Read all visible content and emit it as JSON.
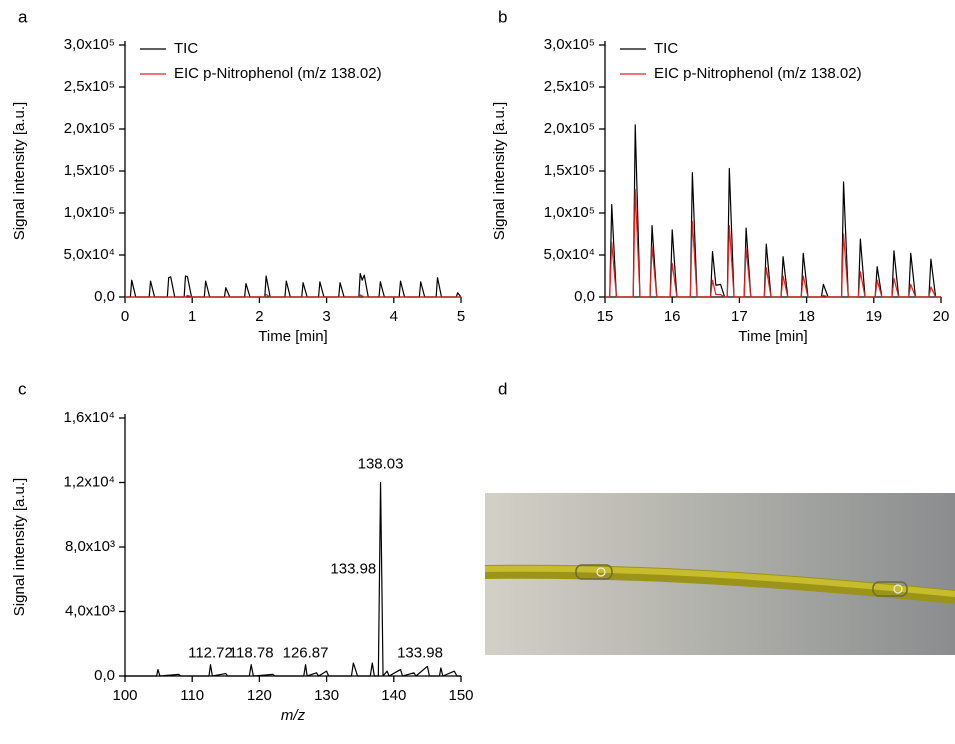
{
  "panels": [
    "a",
    "b",
    "c",
    "d"
  ],
  "chart_data": [
    {
      "type": "line",
      "xlabel": "Time [min]",
      "ylabel": "Signal intensity [a.u.]",
      "legend": "upper left",
      "xlim": [
        0,
        5
      ],
      "xticks": [
        0,
        1,
        2,
        3,
        4,
        5
      ],
      "ylim": [
        0,
        300000
      ],
      "yticks": [
        {
          "value": 0,
          "label": "0,0"
        },
        {
          "value": 50000,
          "label": "5,0x10⁴"
        },
        {
          "value": 100000,
          "label": "1,0x10⁵"
        },
        {
          "value": 150000,
          "label": "1,5x10⁵"
        },
        {
          "value": 200000,
          "label": "2,0x10⁵"
        },
        {
          "value": 250000,
          "label": "2,5x10⁵"
        },
        {
          "value": 300000,
          "label": "3,0x10⁵"
        }
      ],
      "series": [
        {
          "name": "TIC",
          "color": "#000000",
          "x": [
            0,
            0.08,
            0.1,
            0.16,
            0.36,
            0.38,
            0.44,
            0.63,
            0.65,
            0.68,
            0.74,
            0.88,
            0.9,
            0.93,
            0.99,
            1.18,
            1.2,
            1.26,
            1.48,
            1.5,
            1.56,
            1.78,
            1.8,
            1.86,
            2.08,
            2.1,
            2.16,
            2.38,
            2.4,
            2.46,
            2.63,
            2.65,
            2.71,
            2.88,
            2.9,
            2.96,
            3.18,
            3.2,
            3.26,
            3.48,
            3.5,
            3.53,
            3.56,
            3.62,
            3.78,
            3.8,
            3.86,
            4.08,
            4.1,
            4.16,
            4.38,
            4.4,
            4.46,
            4.63,
            4.65,
            4.71,
            4.93,
            4.95,
            5
          ],
          "values": [
            0,
            0,
            20000,
            0,
            0,
            19000,
            0,
            0,
            23000,
            24000,
            0,
            0,
            25000,
            24000,
            0,
            0,
            19000,
            0,
            0,
            11000,
            0,
            0,
            16000,
            0,
            0,
            25000,
            0,
            0,
            19000,
            0,
            0,
            17000,
            0,
            0,
            18000,
            0,
            0,
            17000,
            0,
            0,
            28000,
            20000,
            26000,
            0,
            0,
            18000,
            0,
            0,
            19000,
            0,
            0,
            18000,
            0,
            0,
            23000,
            0,
            0,
            5000,
            0
          ]
        },
        {
          "name": "EIC p-Nitrophenol (m/z 138.02)",
          "color": "#e3231f",
          "x": [
            0,
            0.9,
            0.93,
            0.99,
            2.08,
            2.1,
            2.16,
            3.48,
            3.5,
            3.56,
            5
          ],
          "values": [
            0,
            0,
            2000,
            0,
            0,
            3000,
            0,
            0,
            2500,
            0,
            0
          ]
        }
      ]
    },
    {
      "type": "line",
      "xlabel": "Time [min]",
      "ylabel": "Signal intensity [a.u.]",
      "legend": "upper left",
      "xlim": [
        15,
        20
      ],
      "xticks": [
        15,
        16,
        17,
        18,
        19,
        20
      ],
      "ylim": [
        0,
        300000
      ],
      "yticks": [
        {
          "value": 0,
          "label": "0,0"
        },
        {
          "value": 50000,
          "label": "5,0x10⁴"
        },
        {
          "value": 100000,
          "label": "1,0x10⁵"
        },
        {
          "value": 150000,
          "label": "1,5x10⁵"
        },
        {
          "value": 200000,
          "label": "2,0x10⁵"
        },
        {
          "value": 250000,
          "label": "2,5x10⁵"
        },
        {
          "value": 300000,
          "label": "3,0x10⁵"
        }
      ],
      "x": [
        15,
        15.07,
        15.1,
        15.17,
        15.42,
        15.45,
        15.52,
        15.67,
        15.7,
        15.77,
        15.97,
        16,
        16.07,
        16.27,
        16.3,
        16.37,
        16.57,
        16.6,
        16.65,
        16.72,
        16.78,
        16.82,
        16.85,
        16.92,
        17.07,
        17.1,
        17.17,
        17.37,
        17.4,
        17.47,
        17.62,
        17.65,
        17.72,
        17.92,
        17.95,
        18.02,
        18.22,
        18.25,
        18.32,
        18.52,
        18.55,
        18.62,
        18.77,
        18.8,
        18.87,
        19.02,
        19.05,
        19.12,
        19.27,
        19.3,
        19.37,
        19.52,
        19.55,
        19.62,
        19.82,
        19.85,
        19.92,
        20
      ],
      "series": [
        {
          "name": "TIC",
          "color": "#000000",
          "values": [
            0,
            0,
            110000,
            0,
            0,
            205000,
            0,
            0,
            85000,
            0,
            0,
            80000,
            0,
            0,
            148000,
            0,
            0,
            54000,
            14000,
            15000,
            0,
            0,
            153000,
            0,
            0,
            82000,
            0,
            0,
            63000,
            0,
            0,
            48000,
            0,
            0,
            52000,
            0,
            0,
            15000,
            0,
            0,
            137000,
            0,
            0,
            69000,
            0,
            0,
            36000,
            0,
            0,
            55000,
            0,
            0,
            52000,
            0,
            0,
            45000,
            0,
            0
          ]
        },
        {
          "name": "EIC p-Nitrophenol (m/z 138.02)",
          "color": "#e3231f",
          "values": [
            0,
            0,
            65000,
            0,
            0,
            128000,
            0,
            0,
            60000,
            0,
            0,
            40000,
            0,
            0,
            90000,
            0,
            0,
            20000,
            3000,
            3000,
            0,
            0,
            85000,
            0,
            0,
            58000,
            0,
            0,
            35000,
            0,
            0,
            25000,
            0,
            0,
            25000,
            0,
            0,
            2000,
            0,
            0,
            75000,
            0,
            0,
            30000,
            0,
            0,
            20000,
            0,
            0,
            22000,
            0,
            0,
            15000,
            0,
            0,
            12000,
            0,
            0
          ]
        }
      ]
    },
    {
      "type": "line",
      "xlabel": "m/z",
      "ylabel": "Signal intensity [a.u.]",
      "xlim": [
        100,
        150
      ],
      "xticks": [
        100,
        110,
        120,
        130,
        140,
        150
      ],
      "ylim": [
        0,
        16000
      ],
      "yticks": [
        {
          "value": 0,
          "label": "0,0"
        },
        {
          "value": 4000,
          "label": "4,0x10³"
        },
        {
          "value": 8000,
          "label": "8,0x10³"
        },
        {
          "value": 12000,
          "label": "1,2x10⁴"
        },
        {
          "value": 16000,
          "label": "1,6x10⁴"
        }
      ],
      "x": [
        100,
        104.7,
        104.9,
        105.2,
        108,
        108.3,
        112.5,
        112.72,
        113,
        115,
        115.3,
        118.5,
        118.78,
        119.1,
        122,
        122.3,
        126.6,
        126.87,
        127.1,
        128.5,
        128.8,
        130,
        130.3,
        133.7,
        133.98,
        134.3,
        134.6,
        136.5,
        136.8,
        137.1,
        137.7,
        138.03,
        138.4,
        139,
        139.3,
        141,
        141.3,
        143,
        143.3,
        145,
        145.3,
        146.8,
        147,
        147.3,
        149,
        149.4,
        150
      ],
      "series": [
        {
          "color": "#000000",
          "values": [
            0,
            0,
            400,
            0,
            100,
            0,
            0,
            700,
            0,
            150,
            0,
            0,
            700,
            0,
            100,
            0,
            0,
            700,
            0,
            200,
            0,
            300,
            0,
            0,
            800,
            400,
            0,
            0,
            800,
            0,
            0,
            12000,
            0,
            300,
            0,
            400,
            0,
            200,
            0,
            600,
            0,
            0,
            500,
            0,
            300,
            0,
            0
          ]
        }
      ],
      "annotations": [
        {
          "text": "112.72",
          "x": 112.72,
          "y": 1400
        },
        {
          "text": "118.78",
          "x": 118.78,
          "y": 1400
        },
        {
          "text": "126.87",
          "x": 126.87,
          "y": 1400
        },
        {
          "text": "133.98",
          "x": 133.98,
          "y": 6600
        },
        {
          "text": "138.03",
          "x": 138.03,
          "y": 13100
        },
        {
          "text": "133.98",
          "x": 143.9,
          "y": 1400
        }
      ]
    }
  ]
}
